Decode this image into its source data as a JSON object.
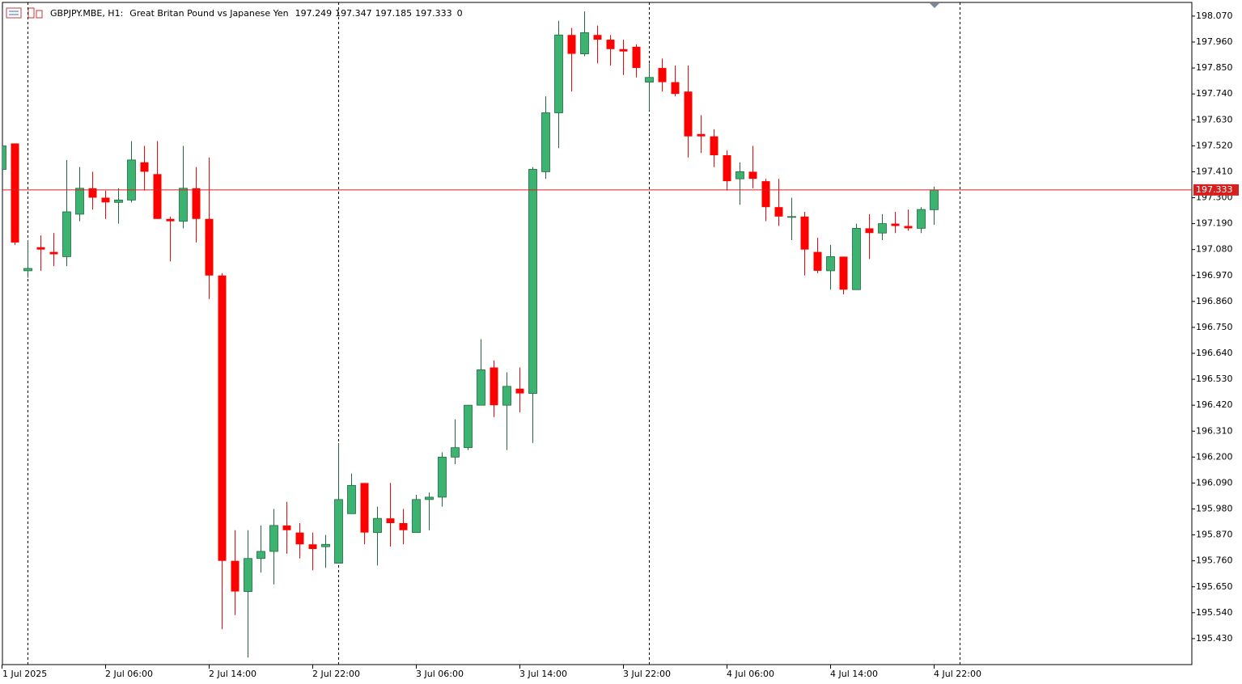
{
  "chart_data": {
    "type": "candlestick",
    "symbol": "GBPJPY.MBE, H1:",
    "description": "Great Britan Pound vs Japanese Yen",
    "info_value": 0,
    "up_color": "#3cb371",
    "down_color": "#ff0000",
    "price_line_color": "#d62020",
    "categories": [
      "1 Jul 2025",
      null,
      null,
      null,
      null,
      null,
      null,
      null,
      "2 Jul 06:00",
      null,
      null,
      null,
      null,
      null,
      null,
      null,
      "2 Jul 14:00",
      null,
      null,
      null,
      null,
      null,
      null,
      null,
      "2 Jul 22:00",
      null,
      null,
      null,
      null,
      null,
      null,
      null,
      "3 Jul 06:00",
      null,
      null,
      null,
      null,
      null,
      null,
      null,
      "3 Jul 14:00",
      null,
      null,
      null,
      null,
      null,
      null,
      null,
      "3 Jul 22:00",
      null,
      null,
      null,
      null,
      null,
      null,
      null,
      "4 Jul 06:00",
      null,
      null,
      null,
      null,
      null,
      null,
      null,
      "4 Jul 14:00",
      null,
      null,
      null,
      null,
      null,
      null,
      null,
      "4 Jul 22:00"
    ],
    "open": [
      197.42,
      197.53,
      196.99,
      197.09,
      197.07,
      197.05,
      197.23,
      197.34,
      197.3,
      197.28,
      197.29,
      197.45,
      197.4,
      197.21,
      197.2,
      197.34,
      197.21,
      196.97,
      195.76,
      195.63,
      195.77,
      195.8,
      195.91,
      195.88,
      195.83,
      195.82,
      195.75,
      195.96,
      196.09,
      195.88,
      195.94,
      195.92,
      195.88,
      196.02,
      196.03,
      196.2,
      196.24,
      196.42,
      196.58,
      196.42,
      196.49,
      196.47,
      197.41,
      197.66,
      197.99,
      197.91,
      197.99,
      197.97,
      197.93,
      197.94,
      197.79,
      197.85,
      197.79,
      197.75,
      197.57,
      197.56,
      197.48,
      197.38,
      197.41,
      197.37,
      197.26,
      197.22,
      197.22,
      197.07,
      196.99,
      197.05,
      196.91,
      197.17,
      197.15,
      197.19,
      197.18,
      197.17,
      197.249
    ],
    "high": [
      197.53,
      197.53,
      197.12,
      197.14,
      197.15,
      197.46,
      197.43,
      197.41,
      197.33,
      197.34,
      197.54,
      197.52,
      197.54,
      197.22,
      197.52,
      197.43,
      197.47,
      196.98,
      195.89,
      195.89,
      195.91,
      195.98,
      196.01,
      195.92,
      195.88,
      195.87,
      196.26,
      196.13,
      196.09,
      195.99,
      196.09,
      195.98,
      196.04,
      196.05,
      196.22,
      196.36,
      196.42,
      196.7,
      196.61,
      196.56,
      196.58,
      197.43,
      197.73,
      198.05,
      198.02,
      198.09,
      198.03,
      197.99,
      197.97,
      197.95,
      197.87,
      197.89,
      197.86,
      197.86,
      197.65,
      197.59,
      197.5,
      197.45,
      197.52,
      197.38,
      197.38,
      197.3,
      197.24,
      197.13,
      197.1,
      197.05,
      197.19,
      197.23,
      197.23,
      197.24,
      197.25,
      197.26,
      197.347
    ],
    "low": [
      197.41,
      197.1,
      196.96,
      196.99,
      197.01,
      197.01,
      197.2,
      197.25,
      197.21,
      197.19,
      197.28,
      197.33,
      197.21,
      197.03,
      197.17,
      197.11,
      196.87,
      195.47,
      195.53,
      195.35,
      195.71,
      195.66,
      195.79,
      195.77,
      195.72,
      195.73,
      195.75,
      195.96,
      195.83,
      195.74,
      195.82,
      195.83,
      195.88,
      195.89,
      195.99,
      196.17,
      196.23,
      196.42,
      196.37,
      196.23,
      196.39,
      196.26,
      197.38,
      197.51,
      197.75,
      197.9,
      197.87,
      197.86,
      197.82,
      197.81,
      197.67,
      197.75,
      197.73,
      197.47,
      197.49,
      197.43,
      197.33,
      197.27,
      197.34,
      197.2,
      197.18,
      197.12,
      196.97,
      196.98,
      196.91,
      196.89,
      196.91,
      197.04,
      197.12,
      197.15,
      197.16,
      197.15,
      197.185
    ],
    "close": [
      197.52,
      197.11,
      197.0,
      197.08,
      197.06,
      197.24,
      197.34,
      197.3,
      197.28,
      197.29,
      197.46,
      197.41,
      197.21,
      197.2,
      197.34,
      197.21,
      196.97,
      195.76,
      195.63,
      195.77,
      195.8,
      195.91,
      195.89,
      195.83,
      195.81,
      195.83,
      196.02,
      196.08,
      195.88,
      195.94,
      195.92,
      195.89,
      196.02,
      196.03,
      196.2,
      196.24,
      196.42,
      196.57,
      196.42,
      196.5,
      196.47,
      197.42,
      197.66,
      197.99,
      197.91,
      198.0,
      197.97,
      197.93,
      197.92,
      197.85,
      197.81,
      197.79,
      197.74,
      197.56,
      197.56,
      197.48,
      197.37,
      197.41,
      197.38,
      197.26,
      197.22,
      197.22,
      197.08,
      196.99,
      197.05,
      196.91,
      197.17,
      197.15,
      197.19,
      197.18,
      197.17,
      197.25,
      197.333
    ],
    "ylim": [
      195.32,
      198.128
    ],
    "yticks": [
      {
        "value": 198.07,
        "label": "198.070"
      },
      {
        "value": 197.96,
        "label": "197.960"
      },
      {
        "value": 197.85,
        "label": "197.850"
      },
      {
        "value": 197.74,
        "label": "197.740"
      },
      {
        "value": 197.63,
        "label": "197.630"
      },
      {
        "value": 197.52,
        "label": "197.520"
      },
      {
        "value": 197.41,
        "label": "197.410"
      },
      {
        "value": 197.3,
        "label": "197.300"
      },
      {
        "value": 197.19,
        "label": "197.190"
      },
      {
        "value": 197.08,
        "label": "197.080"
      },
      {
        "value": 196.97,
        "label": "196.970"
      },
      {
        "value": 196.86,
        "label": "196.860"
      },
      {
        "value": 196.75,
        "label": "196.750"
      },
      {
        "value": 196.64,
        "label": "196.640"
      },
      {
        "value": 196.53,
        "label": "196.530"
      },
      {
        "value": 196.42,
        "label": "196.420"
      },
      {
        "value": 196.31,
        "label": "196.310"
      },
      {
        "value": 196.2,
        "label": "196.200"
      },
      {
        "value": 196.09,
        "label": "196.090"
      },
      {
        "value": 195.98,
        "label": "195.980"
      },
      {
        "value": 195.87,
        "label": "195.870"
      },
      {
        "value": 195.76,
        "label": "195.760"
      },
      {
        "value": 195.65,
        "label": "195.650"
      },
      {
        "value": 195.54,
        "label": "195.540"
      },
      {
        "value": 195.43,
        "label": "195.430"
      }
    ]
  }
}
